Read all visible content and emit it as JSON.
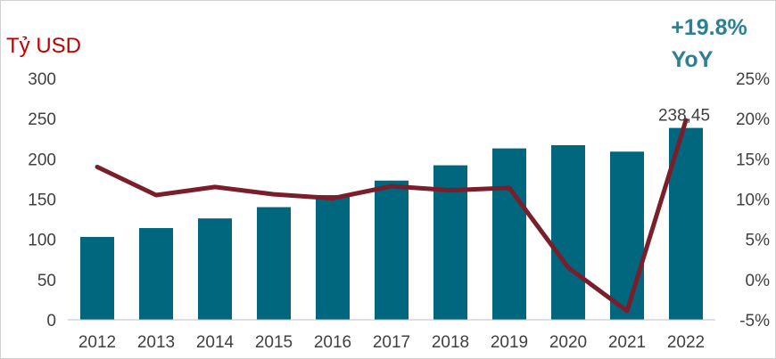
{
  "chart_data": {
    "type": "bar",
    "categories": [
      "2012",
      "2013",
      "2014",
      "2015",
      "2016",
      "2017",
      "2018",
      "2019",
      "2020",
      "2021",
      "2022"
    ],
    "series": [
      {
        "axis": "left",
        "type": "bar",
        "color": "#00677f",
        "values": [
          103,
          114,
          126,
          140,
          155,
          173,
          192,
          213,
          217,
          209,
          238.45
        ]
      },
      {
        "axis": "right",
        "type": "line",
        "color": "#7b1e2b",
        "values": [
          14.0,
          10.5,
          11.5,
          10.6,
          10.1,
          11.6,
          11.1,
          11.4,
          1.5,
          -3.9,
          19.8
        ]
      }
    ],
    "ylabel": "Tỷ USD",
    "ylim": [
      0,
      300
    ],
    "y_ticks": [
      "0",
      "50",
      "100",
      "150",
      "200",
      "250",
      "300"
    ],
    "y2lim": [
      -5,
      25
    ],
    "y2_ticks": [
      "-5%",
      "0%",
      "5%",
      "10%",
      "15%",
      "20%",
      "25%"
    ],
    "data_label": "238,45",
    "badge": {
      "line1": "+19.8%",
      "line2": "YoY"
    },
    "grid": false,
    "colors": {
      "bar": "#00677f",
      "line": "#7b1e2b",
      "unit": "#c00000",
      "badge": "#2e7f94",
      "text": "#404040"
    }
  }
}
